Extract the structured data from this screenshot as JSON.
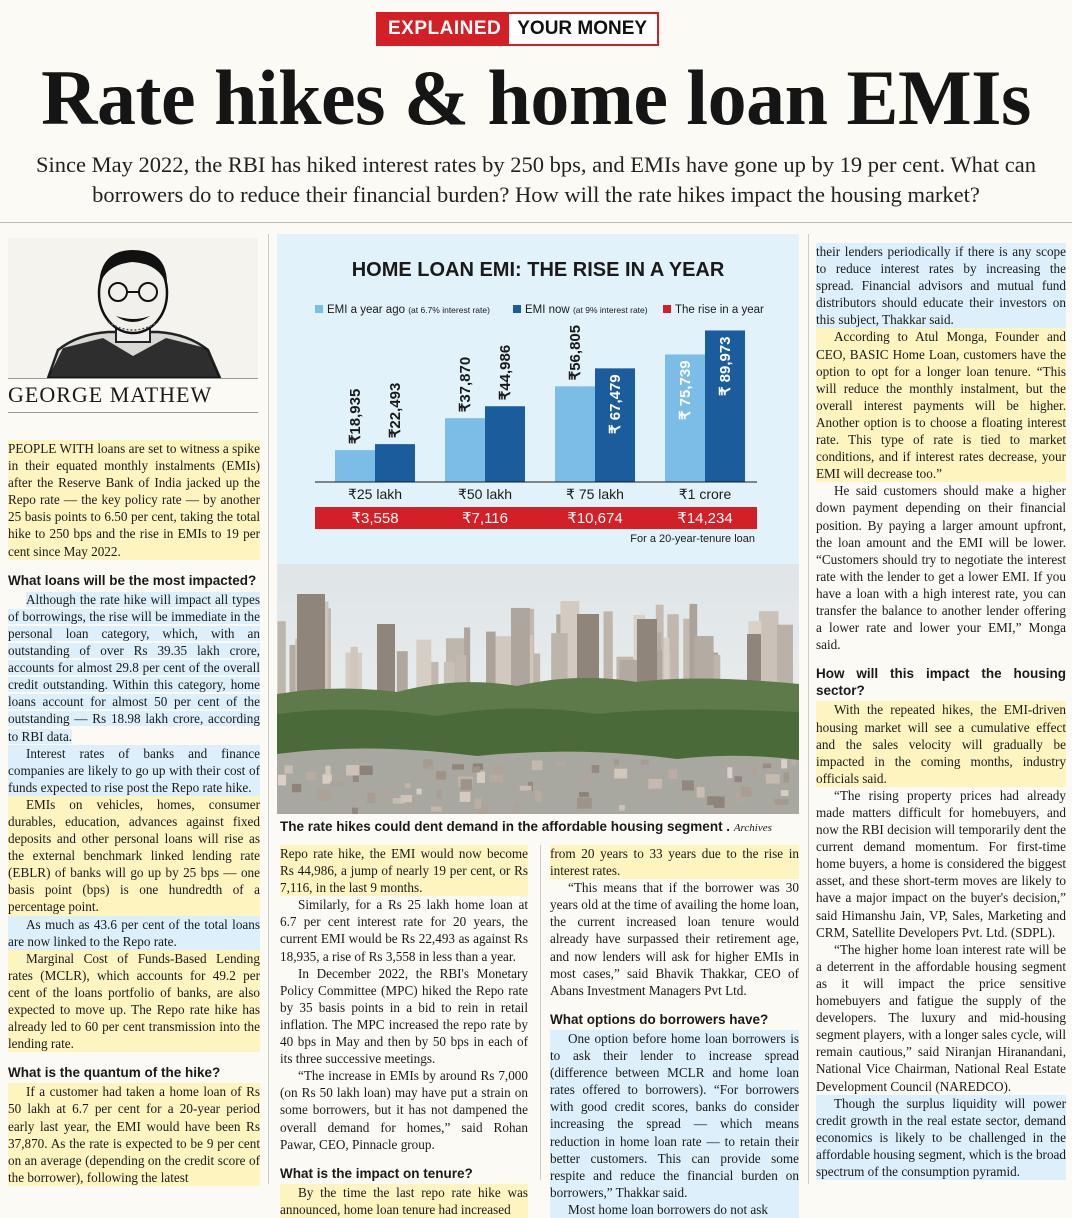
{
  "kicker": {
    "part1": "EXPLAINED",
    "part2": "YOUR MONEY"
  },
  "headline": "Rate hikes & home loan EMIs",
  "deck": "Since May 2022, the RBI has hiked interest rates by 250 bps, and EMIs have gone up by 19 per cent. What can borrowers do to reduce their financial burden? How will the rate hikes impact the housing market?",
  "byline": "GEORGE MATHEW",
  "chart_data": {
    "type": "bar",
    "title": "HOME LOAN EMI: THE RISE IN A YEAR",
    "legend": [
      "EMI a year ago",
      "(at 6.7% interest rate)",
      "EMI now",
      "(at 9% interest rate)",
      "The rise in a year"
    ],
    "categories": [
      "₹25 lakh",
      "₹50 lakh",
      "₹ 75 lakh",
      "₹1 crore"
    ],
    "series": [
      {
        "name": "EMI a year ago",
        "values": [
          18935,
          37870,
          56805,
          75739
        ],
        "labels": [
          "₹18,935",
          "₹37,870",
          "₹56,805",
          "₹ 75,739"
        ],
        "color": "#7bbde6"
      },
      {
        "name": "EMI now",
        "values": [
          22493,
          44986,
          67479,
          89973
        ],
        "labels": [
          "₹22,493",
          "₹44,986",
          "₹ 67,479",
          "₹ 89,973"
        ],
        "color": "#1a5c9c"
      }
    ],
    "rise": {
      "name": "The rise in a year",
      "values": [
        3558,
        7116,
        10674,
        14234
      ],
      "labels": [
        "₹3,558",
        "₹7,116",
        "₹10,674",
        "₹14,234"
      ],
      "color": "#d31f26"
    },
    "footnote": "For a 20-year-tenure loan",
    "ylim": [
      0,
      95000
    ]
  },
  "caption": "The rate hikes could dent demand in the affordable housing segment .",
  "caption_credit": "Archives",
  "col1": {
    "p1": "PEOPLE WITH loans are set to witness a spike in their equated monthly instalments (EMIs) after the Reserve Bank of India jacked up the Repo rate — the key policy rate — by another 25 basis points to 6.50 per cent, taking the total hike to 250 bps and the rise in EMIs to 19 per cent since May 2022.",
    "h1": "What loans will be the most impacted?",
    "p2": "Although the rate hike will impact all types of borrowings, the rise will be immediate in the personal loan category, which, with an outstanding of over Rs 39.35 lakh crore, accounts for almost 29.8 per cent of the overall credit outstanding. Within this category, home loans account for almost 50 per cent of the outstanding — Rs 18.98 lakh crore, according to RBI data.",
    "p3": "Interest rates of banks and finance companies are likely to go up with their cost of funds expected to rise post the Repo rate hike.",
    "p4": "EMIs on vehicles, homes, consumer durables, education, advances against fixed deposits and other personal loans will rise as the external benchmark linked lending rate (EBLR) of banks will go up by 25 bps — one basis point (bps) is one hundredth of a percentage point.",
    "p5": "As much as 43.6 per cent of the total loans are now linked to the Repo rate.",
    "p6": "Marginal Cost of Funds-Based Lending rates (MCLR), which accounts for 49.2 per cent of the loans portfolio of banks, are also expected to move up. The Repo rate hike has already led to 60 per cent transmission into the lending rate.",
    "h2": "What is the quantum of the hike?",
    "p7": "If a customer had taken a home loan of Rs 50 lakh at 6.7 per cent for a 20-year period early last year, the EMI would have been Rs 37,870. As the rate is expected to be 9 per cent on an average (depending on the credit score of the borrower), following the latest"
  },
  "col2": {
    "p1": "Repo rate hike, the EMI would now become Rs 44,986, a jump of nearly 19 per cent, or Rs 7,116, in the last 9 months.",
    "p2": "Similarly, for a Rs 25 lakh home loan at 6.7 per cent interest rate for 20 years, the current EMI would be Rs 22,493 as against Rs 18,935, a rise of Rs 3,558 in less than a year.",
    "p3": "In December 2022, the RBI's Monetary Policy Committee (MPC) hiked the Repo rate by 35 basis points in a bid to rein in retail inflation. The MPC increased the repo rate by 40 bps in May and then by 50 bps in each of its three successive meetings.",
    "p4": "“The increase in EMIs by around Rs 7,000 (on Rs 50 lakh loan) may have put a strain on some borrowers, but it has not dampened the overall demand for homes,” said Rohan Pawar, CEO, Pinnacle group.",
    "h1": "What is the impact on tenure?",
    "p5": "By the time the last repo rate hike was announced, home loan tenure had increased"
  },
  "col3": {
    "p1": "from 20 years to 33 years due to the rise in interest rates.",
    "p2": "“This means that if the borrower was 30 years old at the time of availing the home loan, the current increased loan tenure would already have surpassed their retirement age, and now lenders will ask for higher EMIs in most cases,” said Bhavik Thakkar, CEO of Abans Investment Managers Pvt Ltd.",
    "h1": "What options do borrowers have?",
    "p3": "One option before home loan borrowers is to ask their lender to increase spread (difference between MCLR and home loan rates offered to borrowers). “For borrowers with good credit scores, banks do consider increasing the spread — which means reduction in home loan rate — to retain their better customers. This can provide some respite and reduce the financial burden on borrowers,” Thakkar said.",
    "p4": "Most home loan borrowers do not ask"
  },
  "col4": {
    "p1": "their lenders periodically if there is any scope to reduce interest rates by increasing the spread. Financial advisors and mutual fund distributors should educate their investors on this subject, Thakkar said.",
    "p2": "According to Atul Monga, Founder and CEO, BASIC Home Loan, customers have the option to opt for a longer loan tenure. “This will reduce the monthly instalment, but the overall interest payments will be higher. Another option is to choose a floating interest rate. This type of rate is tied to market conditions, and if interest rates decrease, your EMI will decrease too.”",
    "p3": "He said customers should make a higher down payment depending on their financial position. By paying a larger amount upfront, the loan amount and the EMI will be lower. “Customers should try to negotiate the interest rate with the lender to get a lower EMI. If you have a loan with a high interest rate, you can transfer the balance to another lender offering a lower rate and lower your EMI,” Monga said.",
    "h1": "How will this impact the housing sector?",
    "p4": "With the repeated hikes, the EMI-driven housing market will see a cumulative effect and the sales velocity will gradually be impacted in the coming months, industry officials said.",
    "p5": "“The rising property prices had already made matters difficult for homebuyers, and now the RBI decision will temporarily dent the current demand momentum. For first-time home buyers, a home is considered the biggest asset, and these short-term moves are likely to have a major impact on the buyer's decision,” said Himanshu Jain, VP, Sales, Marketing and CRM, Satellite Developers Pvt. Ltd. (SDPL).",
    "p6": "“The higher home loan interest rate will be a deterrent in the affordable housing segment as it will impact the price sensitive homebuyers and fatigue the supply of the developers. The luxury and mid-housing segment players, with a longer sales cycle, will remain cautious,” said Niranjan Hiranandani, National Vice Chairman, National Real Estate Development Council (NAREDCO).",
    "p7": "Though the surplus liquidity will power credit growth in the real estate sector, demand economics is likely to be challenged in the affordable housing segment, which is the broad spectrum of the consumption pyramid."
  }
}
